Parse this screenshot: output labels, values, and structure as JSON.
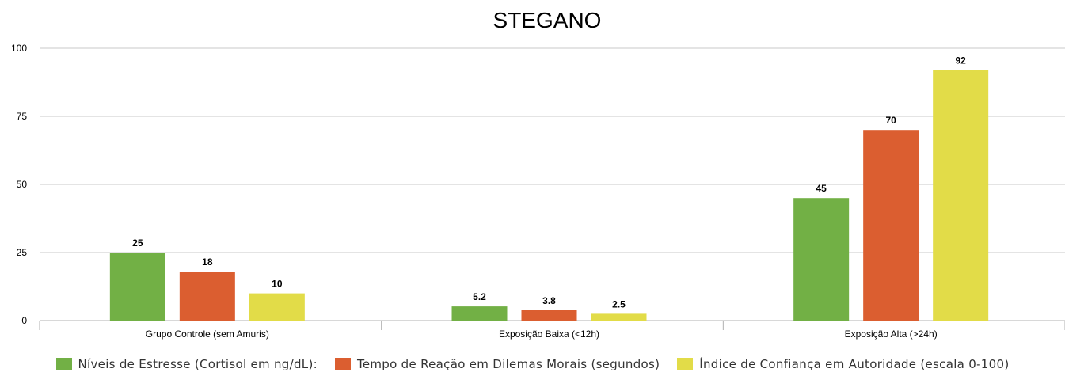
{
  "chart_data": {
    "type": "bar",
    "title": "STEGANO",
    "categories": [
      "Grupo Controle (sem Amuris)",
      "Exposição Baixa (<12h)",
      "Exposição Alta (>24h)"
    ],
    "series": [
      {
        "name": "Níveis de Estresse (Cortisol em ng/dL):",
        "values": [
          25,
          5.2,
          45
        ],
        "labels": [
          "25",
          "5.2",
          "45"
        ],
        "color": "#72b045"
      },
      {
        "name": "Tempo de Reação em Dilemas Morais (segundos)",
        "values": [
          18,
          3.8,
          70
        ],
        "labels": [
          "18",
          "3.8",
          "70"
        ],
        "color": "#db5e30"
      },
      {
        "name": "Índice de Confiança em Autoridade (escala 0-100)",
        "values": [
          10,
          2.5,
          92
        ],
        "labels": [
          "10",
          "2.5",
          "92"
        ],
        "color": "#e2dc48"
      }
    ],
    "ylim": [
      0,
      100
    ],
    "yticks": [
      "0",
      "25",
      "50",
      "75",
      "100"
    ],
    "grid": true,
    "legend_position": "bottom"
  }
}
